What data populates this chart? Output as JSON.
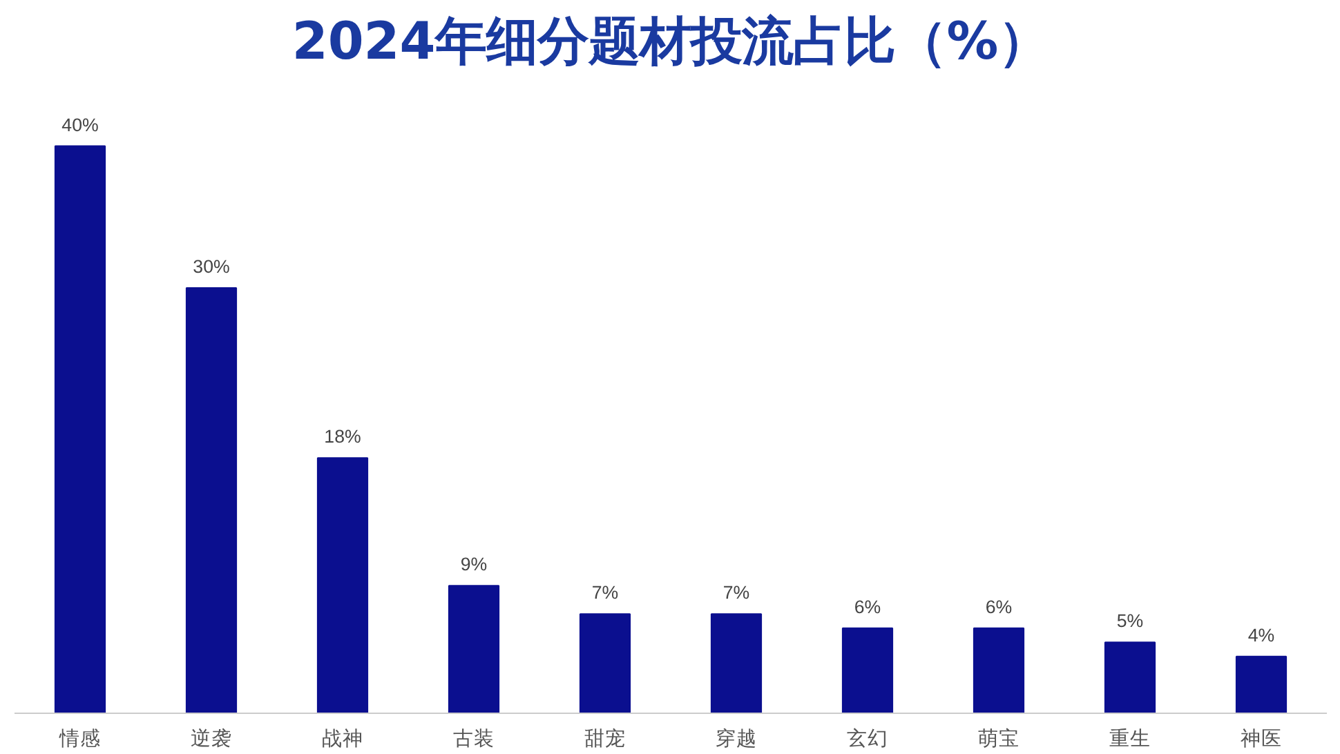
{
  "chart_data": {
    "type": "bar",
    "title": "2024年细分题材投流占比（%）",
    "categories": [
      "情感",
      "逆袭",
      "战神",
      "古装",
      "甜宠",
      "穿越",
      "玄幻",
      "萌宝",
      "重生",
      "神医"
    ],
    "values": [
      40,
      30,
      18,
      9,
      7,
      7,
      6,
      6,
      5,
      4
    ],
    "value_labels": [
      "40%",
      "30%",
      "18%",
      "9%",
      "7%",
      "7%",
      "6%",
      "6%",
      "5%",
      "4%"
    ],
    "color": "#0b0f8f",
    "grid": false
  }
}
